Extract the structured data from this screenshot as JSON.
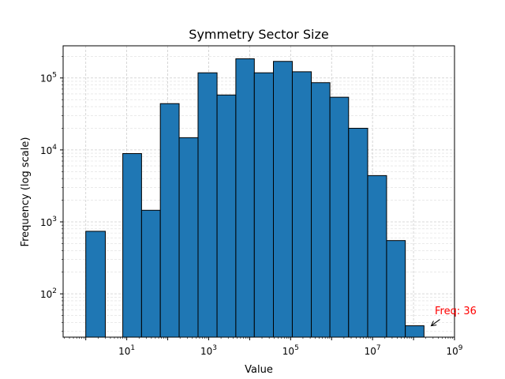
{
  "chart_data": {
    "type": "bar",
    "title": "Symmetry Sector Size",
    "xlabel": "Value",
    "ylabel": "Frequency (log scale)",
    "x_scale": "log",
    "y_scale": "log",
    "xlim": [
      0.28,
      1000000000
    ],
    "ylim": [
      25,
      280000
    ],
    "grid": true,
    "bar_color": "#1f77b4",
    "edge_color": "#000000",
    "bins": [
      {
        "x0": 1,
        "x1": 3,
        "count": 740
      },
      {
        "x0": 3,
        "x1": 8,
        "count": 0
      },
      {
        "x0": 8,
        "x1": 23,
        "count": 8900
      },
      {
        "x0": 23,
        "x1": 66,
        "count": 1450
      },
      {
        "x0": 66,
        "x1": 190,
        "count": 44000
      },
      {
        "x0": 190,
        "x1": 550,
        "count": 14800
      },
      {
        "x0": 550,
        "x1": 1600,
        "count": 118000
      },
      {
        "x0": 1600,
        "x1": 4600,
        "count": 58000
      },
      {
        "x0": 4600,
        "x1": 13000,
        "count": 185000
      },
      {
        "x0": 13000,
        "x1": 38000,
        "count": 118000
      },
      {
        "x0": 38000,
        "x1": 110000,
        "count": 170000
      },
      {
        "x0": 110000,
        "x1": 320000,
        "count": 122000
      },
      {
        "x0": 320000,
        "x1": 910000,
        "count": 86000
      },
      {
        "x0": 910000,
        "x1": 2600000,
        "count": 54000
      },
      {
        "x0": 2600000,
        "x1": 7600000,
        "count": 20000
      },
      {
        "x0": 7600000,
        "x1": 22000000,
        "count": 4400
      },
      {
        "x0": 22000000,
        "x1": 63000000,
        "count": 550
      },
      {
        "x0": 63000000,
        "x1": 180000000,
        "count": 36
      }
    ],
    "x_ticks": [
      {
        "base": "10",
        "exp": "1",
        "value": 10
      },
      {
        "base": "10",
        "exp": "3",
        "value": 1000
      },
      {
        "base": "10",
        "exp": "5",
        "value": 100000
      },
      {
        "base": "10",
        "exp": "7",
        "value": 10000000
      },
      {
        "base": "10",
        "exp": "9",
        "value": 1000000000
      }
    ],
    "y_ticks": [
      {
        "base": "10",
        "exp": "2",
        "value": 100
      },
      {
        "base": "10",
        "exp": "3",
        "value": 1000
      },
      {
        "base": "10",
        "exp": "4",
        "value": 10000
      },
      {
        "base": "10",
        "exp": "5",
        "value": 100000
      }
    ],
    "annotation": {
      "text": "Freq: 36",
      "color": "#ff0000",
      "text_x": 330000000,
      "text_y": 52,
      "arrow_x": 270000000,
      "arrow_y": 36
    }
  }
}
